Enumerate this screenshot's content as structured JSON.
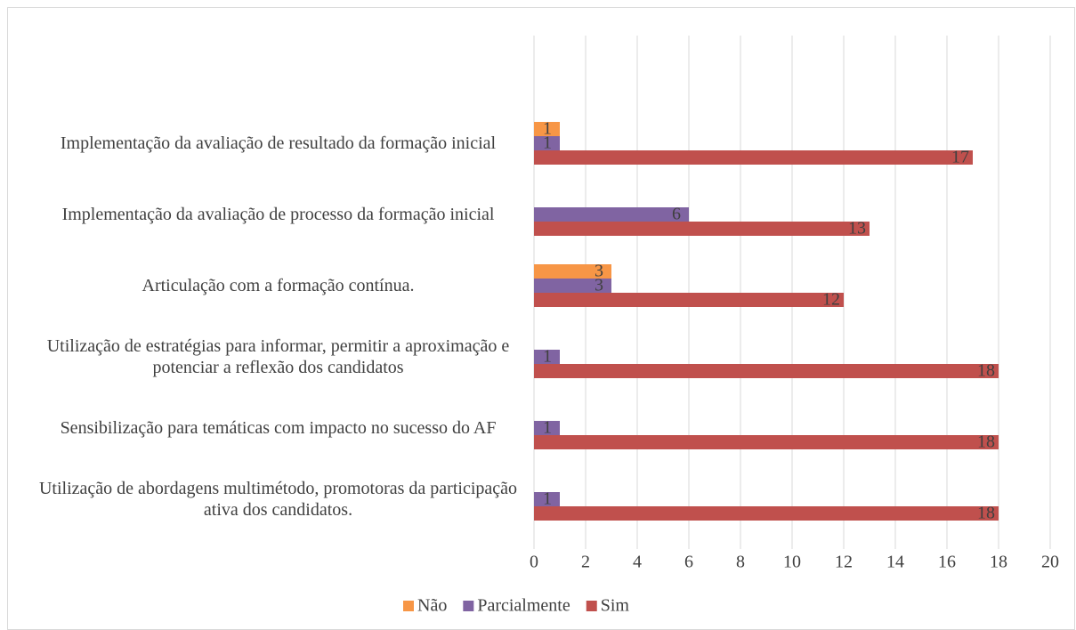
{
  "chart_data": {
    "type": "hbar",
    "categories": [
      "Implementação da avaliação de resultado da formação inicial",
      "Implementação da avaliação de processo da formação inicial",
      "Articulação com a formação contínua.",
      "Utilização de estratégias para informar, permitir a aproximação e potenciar a reflexão dos candidatos",
      "Sensibilização para temáticas com impacto no sucesso do AF",
      "Utilização de abordagens multimétodo,  promotoras da participação ativa dos candidatos."
    ],
    "series": [
      {
        "name": "Não",
        "color": "#f79646",
        "values": [
          1,
          null,
          3,
          null,
          null,
          null
        ]
      },
      {
        "name": "Parcialmente",
        "color": "#8064a2",
        "values": [
          1,
          6,
          3,
          1,
          1,
          1
        ]
      },
      {
        "name": "Sim",
        "color": "#c0504d",
        "values": [
          17,
          13,
          12,
          18,
          18,
          18
        ]
      }
    ],
    "xlim": [
      0,
      20
    ],
    "xticks": [
      0,
      2,
      4,
      6,
      8,
      10,
      12,
      14,
      16,
      18,
      20
    ],
    "grid": true,
    "legend": "bottom"
  }
}
